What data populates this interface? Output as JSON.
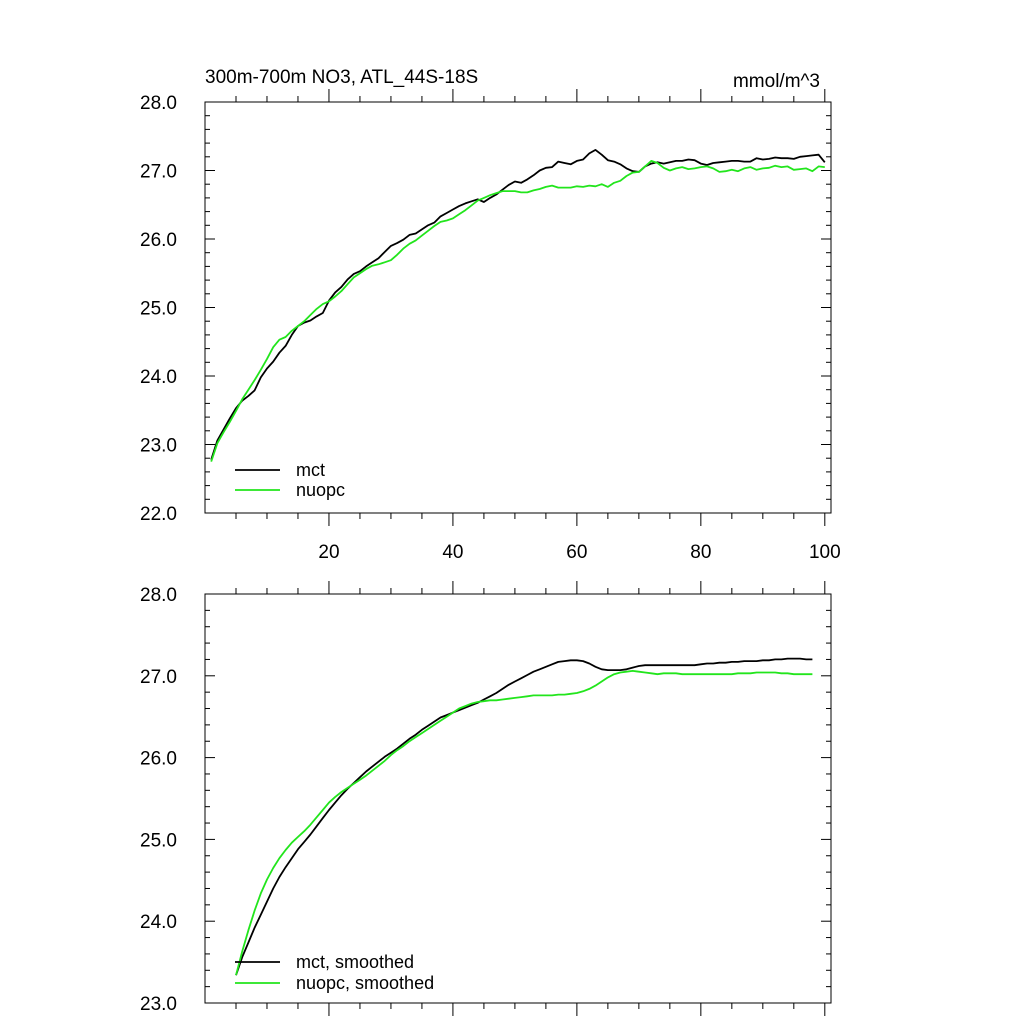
{
  "colors": {
    "mct": "#000000",
    "nuopc": "#22e51c",
    "axis": "#000000",
    "background": "#ffffff"
  },
  "chart_data": [
    {
      "type": "line",
      "title": "300m-700m NO3, ATL_44S-18S",
      "units_label": "mmol/m^3",
      "xlabel": "",
      "ylabel": "",
      "xlim": [
        0,
        101
      ],
      "ylim": [
        22.0,
        28.0
      ],
      "xticks": [
        20,
        40,
        60,
        80,
        100
      ],
      "xtick_labels": [
        "20",
        "40",
        "60",
        "80",
        "100"
      ],
      "yticks": [
        22,
        23,
        24,
        25,
        26,
        27,
        28
      ],
      "ytick_labels": [
        "22.0",
        "23.0",
        "24.0",
        "25.0",
        "26.0",
        "27.0",
        "28.0"
      ],
      "grid": false,
      "legend_position": "bottom-left",
      "series": [
        {
          "name": "mct",
          "color_key": "mct",
          "x": [
            1,
            2,
            3,
            4,
            5,
            6,
            7,
            8,
            9,
            10,
            11,
            12,
            13,
            14,
            15,
            16,
            17,
            18,
            19,
            20,
            21,
            22,
            23,
            24,
            25,
            26,
            27,
            28,
            29,
            30,
            31,
            32,
            33,
            34,
            35,
            36,
            37,
            38,
            39,
            40,
            41,
            42,
            43,
            44,
            45,
            46,
            47,
            48,
            49,
            50,
            51,
            52,
            53,
            54,
            55,
            56,
            57,
            58,
            59,
            60,
            61,
            62,
            63,
            64,
            65,
            66,
            67,
            68,
            69,
            70,
            71,
            72,
            73,
            74,
            75,
            76,
            77,
            78,
            79,
            80,
            81,
            82,
            83,
            84,
            85,
            86,
            87,
            88,
            89,
            90,
            91,
            92,
            93,
            94,
            95,
            96,
            97,
            98,
            99,
            100
          ],
          "values": [
            22.78,
            23.06,
            23.22,
            23.38,
            23.53,
            23.64,
            23.71,
            23.79,
            23.98,
            24.11,
            24.21,
            24.34,
            24.44,
            24.6,
            24.73,
            24.78,
            24.81,
            24.87,
            24.92,
            25.1,
            25.22,
            25.3,
            25.41,
            25.49,
            25.53,
            25.6,
            25.66,
            25.72,
            25.81,
            25.9,
            25.94,
            25.99,
            26.06,
            26.08,
            26.14,
            26.2,
            26.24,
            26.33,
            26.38,
            26.43,
            26.48,
            26.52,
            26.55,
            26.58,
            26.54,
            26.6,
            26.65,
            26.72,
            26.79,
            26.84,
            26.82,
            26.87,
            26.93,
            27.0,
            27.04,
            27.05,
            27.13,
            27.11,
            27.09,
            27.14,
            27.16,
            27.25,
            27.3,
            27.23,
            27.15,
            27.13,
            27.09,
            27.03,
            26.99,
            26.98,
            27.06,
            27.1,
            27.12,
            27.1,
            27.12,
            27.14,
            27.14,
            27.16,
            27.15,
            27.1,
            27.08,
            27.11,
            27.12,
            27.13,
            27.14,
            27.14,
            27.13,
            27.13,
            27.18,
            27.16,
            27.17,
            27.19,
            27.18,
            27.18,
            27.17,
            27.2,
            27.21,
            27.22,
            27.23,
            27.12
          ]
        },
        {
          "name": "nuopc",
          "color_key": "nuopc",
          "x": [
            1,
            2,
            3,
            4,
            5,
            6,
            7,
            8,
            9,
            10,
            11,
            12,
            13,
            14,
            15,
            16,
            17,
            18,
            19,
            20,
            21,
            22,
            23,
            24,
            25,
            26,
            27,
            28,
            29,
            30,
            31,
            32,
            33,
            34,
            35,
            36,
            37,
            38,
            39,
            40,
            41,
            42,
            43,
            44,
            45,
            46,
            47,
            48,
            49,
            50,
            51,
            52,
            53,
            54,
            55,
            56,
            57,
            58,
            59,
            60,
            61,
            62,
            63,
            64,
            65,
            66,
            67,
            68,
            69,
            70,
            71,
            72,
            73,
            74,
            75,
            76,
            77,
            78,
            79,
            80,
            81,
            82,
            83,
            84,
            85,
            86,
            87,
            88,
            89,
            90,
            91,
            92,
            93,
            94,
            95,
            96,
            97,
            98,
            99,
            100
          ],
          "values": [
            22.75,
            23.02,
            23.18,
            23.33,
            23.49,
            23.66,
            23.8,
            23.94,
            24.09,
            24.25,
            24.42,
            24.53,
            24.57,
            24.66,
            24.73,
            24.8,
            24.89,
            24.98,
            25.05,
            25.09,
            25.16,
            25.24,
            25.34,
            25.44,
            25.5,
            25.56,
            25.61,
            25.63,
            25.66,
            25.69,
            25.77,
            25.86,
            25.93,
            25.98,
            26.05,
            26.12,
            26.19,
            26.25,
            26.27,
            26.3,
            26.36,
            26.42,
            26.49,
            26.56,
            26.6,
            26.64,
            26.67,
            26.7,
            26.7,
            26.7,
            26.68,
            26.68,
            26.71,
            26.73,
            26.76,
            26.78,
            26.75,
            26.75,
            26.75,
            26.77,
            26.76,
            26.78,
            26.77,
            26.8,
            26.76,
            26.82,
            26.85,
            26.92,
            26.97,
            26.98,
            27.06,
            27.14,
            27.11,
            27.04,
            27.0,
            27.03,
            27.05,
            27.02,
            27.03,
            27.05,
            27.06,
            27.03,
            26.98,
            26.99,
            27.01,
            26.99,
            27.03,
            27.05,
            27.01,
            27.03,
            27.04,
            27.07,
            27.05,
            27.06,
            27.01,
            27.02,
            27.03,
            26.99,
            27.06,
            27.05
          ]
        }
      ]
    },
    {
      "type": "line",
      "title": "",
      "xlabel": "",
      "ylabel": "",
      "xlim": [
        0,
        101
      ],
      "ylim": [
        23.0,
        28.0
      ],
      "xticks": [
        20,
        40,
        60,
        80,
        100
      ],
      "xtick_labels": [
        "",
        "",
        "",
        "",
        ""
      ],
      "yticks": [
        23,
        24,
        25,
        26,
        27,
        28
      ],
      "ytick_labels": [
        "23.0",
        "24.0",
        "25.0",
        "26.0",
        "27.0",
        "28.0"
      ],
      "grid": false,
      "legend_position": "bottom-left",
      "series": [
        {
          "name": "mct, smoothed",
          "color_key": "mct",
          "x": [
            5,
            6,
            7,
            8,
            9,
            10,
            11,
            12,
            13,
            14,
            15,
            16,
            17,
            18,
            19,
            20,
            21,
            22,
            23,
            24,
            25,
            26,
            27,
            28,
            29,
            30,
            31,
            32,
            33,
            34,
            35,
            36,
            37,
            38,
            39,
            40,
            41,
            42,
            43,
            44,
            45,
            46,
            47,
            48,
            49,
            50,
            51,
            52,
            53,
            54,
            55,
            56,
            57,
            58,
            59,
            60,
            61,
            62,
            63,
            64,
            65,
            66,
            67,
            68,
            69,
            70,
            71,
            72,
            73,
            74,
            75,
            76,
            77,
            78,
            79,
            80,
            81,
            82,
            83,
            84,
            85,
            86,
            87,
            88,
            89,
            90,
            91,
            92,
            93,
            94,
            95,
            96,
            97,
            98
          ],
          "values": [
            23.34,
            23.56,
            23.74,
            23.92,
            24.08,
            24.24,
            24.4,
            24.54,
            24.66,
            24.77,
            24.88,
            24.97,
            25.06,
            25.16,
            25.26,
            25.36,
            25.45,
            25.54,
            25.62,
            25.69,
            25.76,
            25.83,
            25.89,
            25.95,
            26.01,
            26.06,
            26.11,
            26.17,
            26.23,
            26.28,
            26.34,
            26.39,
            26.44,
            26.49,
            26.52,
            26.55,
            26.58,
            26.61,
            26.64,
            26.67,
            26.71,
            26.75,
            26.79,
            26.84,
            26.89,
            26.93,
            26.97,
            27.01,
            27.05,
            27.08,
            27.11,
            27.14,
            27.17,
            27.18,
            27.19,
            27.19,
            27.18,
            27.15,
            27.11,
            27.08,
            27.07,
            27.07,
            27.07,
            27.08,
            27.1,
            27.12,
            27.13,
            27.13,
            27.13,
            27.13,
            27.13,
            27.13,
            27.13,
            27.13,
            27.13,
            27.14,
            27.15,
            27.15,
            27.16,
            27.16,
            27.17,
            27.17,
            27.18,
            27.18,
            27.18,
            27.19,
            27.19,
            27.2,
            27.2,
            27.21,
            27.21,
            27.21,
            27.2,
            27.2
          ]
        },
        {
          "name": "nuopc, smoothed",
          "color_key": "nuopc",
          "x": [
            5,
            6,
            7,
            8,
            9,
            10,
            11,
            12,
            13,
            14,
            15,
            16,
            17,
            18,
            19,
            20,
            21,
            22,
            23,
            24,
            25,
            26,
            27,
            28,
            29,
            30,
            31,
            32,
            33,
            34,
            35,
            36,
            37,
            38,
            39,
            40,
            41,
            42,
            43,
            44,
            45,
            46,
            47,
            48,
            49,
            50,
            51,
            52,
            53,
            54,
            55,
            56,
            57,
            58,
            59,
            60,
            61,
            62,
            63,
            64,
            65,
            66,
            67,
            68,
            69,
            70,
            71,
            72,
            73,
            74,
            75,
            76,
            77,
            78,
            79,
            80,
            81,
            82,
            83,
            84,
            85,
            86,
            87,
            88,
            89,
            90,
            91,
            92,
            93,
            94,
            95,
            96,
            97,
            98
          ],
          "values": [
            23.34,
            23.63,
            23.89,
            24.13,
            24.34,
            24.51,
            24.65,
            24.77,
            24.87,
            24.96,
            25.03,
            25.1,
            25.18,
            25.27,
            25.36,
            25.45,
            25.52,
            25.58,
            25.63,
            25.68,
            25.73,
            25.78,
            25.84,
            25.9,
            25.96,
            26.03,
            26.09,
            26.14,
            26.2,
            26.25,
            26.3,
            26.35,
            26.4,
            26.45,
            26.5,
            26.55,
            26.6,
            26.63,
            26.66,
            26.68,
            26.69,
            26.7,
            26.7,
            26.71,
            26.72,
            26.73,
            26.74,
            26.75,
            26.76,
            26.76,
            26.76,
            26.76,
            26.77,
            26.77,
            26.78,
            26.79,
            26.81,
            26.84,
            26.88,
            26.93,
            26.98,
            27.02,
            27.04,
            27.05,
            27.06,
            27.05,
            27.04,
            27.03,
            27.02,
            27.03,
            27.03,
            27.03,
            27.02,
            27.02,
            27.02,
            27.02,
            27.02,
            27.02,
            27.02,
            27.02,
            27.02,
            27.03,
            27.03,
            27.03,
            27.04,
            27.04,
            27.04,
            27.04,
            27.03,
            27.03,
            27.02,
            27.02,
            27.02,
            27.02
          ]
        }
      ]
    }
  ]
}
